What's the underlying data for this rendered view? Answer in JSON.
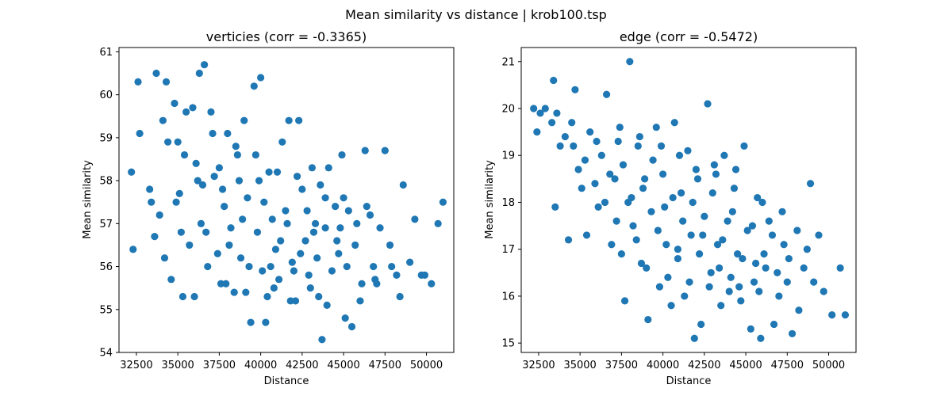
{
  "suptitle": "Mean similarity vs distance | krob100.tsp",
  "colors": {
    "marker": "#1f77b4",
    "axes": "#000000",
    "background": "#ffffff"
  },
  "chart_data": [
    {
      "type": "scatter",
      "title": "verticies (corr = -0.3365)",
      "xlabel": "Distance",
      "ylabel": "Mean similarity",
      "xlim": [
        31450,
        51650
      ],
      "ylim": [
        54,
        61.1
      ],
      "grid": false,
      "xticks": [
        32500,
        35000,
        37500,
        40000,
        42500,
        45000,
        47500,
        50000
      ],
      "xtick_labels": [
        "32500",
        "35000",
        "37500",
        "40000",
        "42500",
        "45000",
        "47500",
        "50000"
      ],
      "yticks": [
        54,
        55,
        56,
        57,
        58,
        59,
        60,
        61
      ],
      "ytick_labels": [
        "54",
        "55",
        "56",
        "57",
        "58",
        "59",
        "60",
        "61"
      ],
      "correlation": -0.3365,
      "points": [
        [
          32200,
          58.2
        ],
        [
          32300,
          56.4
        ],
        [
          32600,
          60.3
        ],
        [
          32700,
          59.1
        ],
        [
          33300,
          57.8
        ],
        [
          33400,
          57.5
        ],
        [
          33600,
          56.7
        ],
        [
          33700,
          60.5
        ],
        [
          33900,
          57.2
        ],
        [
          34100,
          59.4
        ],
        [
          34200,
          56.2
        ],
        [
          34300,
          60.3
        ],
        [
          34400,
          58.9
        ],
        [
          34600,
          55.7
        ],
        [
          34800,
          59.8
        ],
        [
          35000,
          58.9
        ],
        [
          35100,
          57.7
        ],
        [
          35300,
          55.3
        ],
        [
          35500,
          59.6
        ],
        [
          35700,
          56.5
        ],
        [
          35900,
          59.7
        ],
        [
          36100,
          58.4
        ],
        [
          36300,
          60.5
        ],
        [
          36500,
          57.9
        ],
        [
          36600,
          60.7
        ],
        [
          36700,
          56.8
        ],
        [
          37000,
          59.6
        ],
        [
          37200,
          58.1
        ],
        [
          37400,
          56.3
        ],
        [
          37600,
          55.6
        ],
        [
          37800,
          57.4
        ],
        [
          38000,
          59.1
        ],
        [
          38200,
          56.9
        ],
        [
          38400,
          55.4
        ],
        [
          38600,
          58.6
        ],
        [
          38800,
          56.2
        ],
        [
          39000,
          59.4
        ],
        [
          39200,
          57.6
        ],
        [
          39400,
          54.7
        ],
        [
          39600,
          60.2
        ],
        [
          39800,
          56.8
        ],
        [
          40000,
          60.4
        ],
        [
          40100,
          55.9
        ],
        [
          40300,
          54.7
        ],
        [
          40500,
          58.2
        ],
        [
          40700,
          57.1
        ],
        [
          40900,
          56.4
        ],
        [
          41100,
          55.7
        ],
        [
          41300,
          58.9
        ],
        [
          41500,
          57.3
        ],
        [
          41700,
          59.4
        ],
        [
          41900,
          56.1
        ],
        [
          42100,
          55.2
        ],
        [
          42300,
          59.4
        ],
        [
          42500,
          57.8
        ],
        [
          42700,
          56.6
        ],
        [
          42900,
          55.8
        ],
        [
          43100,
          58.3
        ],
        [
          43300,
          57.0
        ],
        [
          43500,
          55.3
        ],
        [
          43700,
          54.3
        ],
        [
          43900,
          56.9
        ],
        [
          44100,
          58.3
        ],
        [
          44300,
          55.9
        ],
        [
          44500,
          57.4
        ],
        [
          44700,
          56.3
        ],
        [
          44900,
          58.6
        ],
        [
          45100,
          54.8
        ],
        [
          45300,
          57.3
        ],
        [
          45500,
          54.6
        ],
        [
          45700,
          56.5
        ],
        [
          46000,
          55.2
        ],
        [
          46300,
          58.7
        ],
        [
          46600,
          57.2
        ],
        [
          46900,
          55.7
        ],
        [
          47200,
          56.9
        ],
        [
          47500,
          58.7
        ],
        [
          47800,
          56.5
        ],
        [
          48200,
          55.8
        ],
        [
          48600,
          57.9
        ],
        [
          49000,
          56.1
        ],
        [
          49300,
          57.1
        ],
        [
          49700,
          55.8
        ],
        [
          50300,
          55.6
        ],
        [
          50700,
          57.0
        ],
        [
          51000,
          57.5
        ],
        [
          49900,
          55.8
        ],
        [
          48400,
          55.3
        ],
        [
          46100,
          55.6
        ],
        [
          44000,
          55.1
        ],
        [
          36000,
          55.3
        ],
        [
          35400,
          58.6
        ],
        [
          37100,
          59.1
        ],
        [
          38500,
          58.8
        ],
        [
          39700,
          58.6
        ],
        [
          40600,
          56.0
        ],
        [
          41200,
          56.6
        ],
        [
          42400,
          56.3
        ],
        [
          43200,
          56.8
        ],
        [
          44800,
          56.9
        ],
        [
          36400,
          57.0
        ],
        [
          37700,
          57.8
        ],
        [
          38900,
          57.1
        ],
        [
          40200,
          57.5
        ],
        [
          41600,
          57.0
        ],
        [
          42800,
          57.3
        ],
        [
          43900,
          57.6
        ],
        [
          45200,
          56.0
        ],
        [
          46800,
          56.0
        ],
        [
          47900,
          56.0
        ],
        [
          35200,
          56.8
        ],
        [
          36800,
          56.0
        ],
        [
          38100,
          56.5
        ],
        [
          39300,
          56.0
        ],
        [
          40800,
          55.5
        ],
        [
          42000,
          55.9
        ],
        [
          43400,
          56.2
        ],
        [
          44600,
          56.6
        ],
        [
          45800,
          57.0
        ],
        [
          47000,
          55.6
        ],
        [
          34900,
          57.5
        ],
        [
          36200,
          58.0
        ],
        [
          37500,
          58.3
        ],
        [
          38700,
          58.0
        ],
        [
          39900,
          58.0
        ],
        [
          41000,
          58.2
        ],
        [
          42200,
          58.1
        ],
        [
          43600,
          57.9
        ],
        [
          45000,
          57.6
        ],
        [
          46400,
          57.4
        ],
        [
          37900,
          55.6
        ],
        [
          39100,
          55.4
        ],
        [
          40400,
          55.3
        ],
        [
          41800,
          55.2
        ],
        [
          43000,
          55.5
        ]
      ]
    },
    {
      "type": "scatter",
      "title": "edge (corr = -0.5472)",
      "xlabel": "Distance",
      "ylabel": "Mean similarity",
      "xlim": [
        31450,
        51650
      ],
      "ylim": [
        14.8,
        21.3
      ],
      "grid": false,
      "xticks": [
        32500,
        35000,
        37500,
        40000,
        42500,
        45000,
        47500,
        50000
      ],
      "xtick_labels": [
        "32500",
        "35000",
        "37500",
        "40000",
        "42500",
        "45000",
        "47500",
        "50000"
      ],
      "yticks": [
        15,
        16,
        17,
        18,
        19,
        20,
        21
      ],
      "ytick_labels": [
        "15",
        "16",
        "17",
        "18",
        "19",
        "20",
        "21"
      ],
      "correlation": -0.5472,
      "points": [
        [
          32200,
          20.0
        ],
        [
          32400,
          19.5
        ],
        [
          32600,
          19.9
        ],
        [
          32900,
          20.0
        ],
        [
          33300,
          19.7
        ],
        [
          33400,
          20.6
        ],
        [
          33500,
          17.9
        ],
        [
          33600,
          19.9
        ],
        [
          33800,
          19.2
        ],
        [
          34100,
          19.4
        ],
        [
          34300,
          17.2
        ],
        [
          34500,
          19.7
        ],
        [
          34700,
          20.4
        ],
        [
          34900,
          18.7
        ],
        [
          35100,
          18.3
        ],
        [
          35400,
          17.3
        ],
        [
          35600,
          19.5
        ],
        [
          35900,
          18.4
        ],
        [
          36100,
          17.9
        ],
        [
          36300,
          19.0
        ],
        [
          36600,
          20.3
        ],
        [
          36900,
          17.1
        ],
        [
          37100,
          18.5
        ],
        [
          37300,
          19.3
        ],
        [
          37500,
          16.9
        ],
        [
          37700,
          15.9
        ],
        [
          37900,
          18.0
        ],
        [
          38000,
          21.0
        ],
        [
          38200,
          17.5
        ],
        [
          38500,
          19.2
        ],
        [
          38700,
          16.7
        ],
        [
          38900,
          18.5
        ],
        [
          39100,
          15.5
        ],
        [
          39300,
          17.8
        ],
        [
          39600,
          19.6
        ],
        [
          39800,
          16.2
        ],
        [
          40000,
          18.6
        ],
        [
          40200,
          17.1
        ],
        [
          40500,
          15.8
        ],
        [
          40700,
          19.7
        ],
        [
          40900,
          16.8
        ],
        [
          41100,
          18.2
        ],
        [
          41300,
          16.0
        ],
        [
          41500,
          19.1
        ],
        [
          41700,
          17.3
        ],
        [
          41900,
          15.1
        ],
        [
          42100,
          18.5
        ],
        [
          42300,
          15.4
        ],
        [
          42500,
          17.7
        ],
        [
          42700,
          20.1
        ],
        [
          42900,
          16.5
        ],
        [
          43100,
          18.8
        ],
        [
          43300,
          17.1
        ],
        [
          43500,
          15.8
        ],
        [
          43700,
          19.0
        ],
        [
          43900,
          17.6
        ],
        [
          44100,
          16.4
        ],
        [
          44300,
          18.3
        ],
        [
          44500,
          16.9
        ],
        [
          44700,
          15.9
        ],
        [
          44900,
          19.2
        ],
        [
          45100,
          17.4
        ],
        [
          45300,
          15.3
        ],
        [
          45500,
          16.3
        ],
        [
          45700,
          18.1
        ],
        [
          45900,
          15.1
        ],
        [
          46100,
          16.9
        ],
        [
          46400,
          17.6
        ],
        [
          46700,
          15.4
        ],
        [
          46900,
          16.5
        ],
        [
          47200,
          17.8
        ],
        [
          47500,
          16.3
        ],
        [
          47800,
          15.2
        ],
        [
          48100,
          17.4
        ],
        [
          48500,
          16.6
        ],
        [
          48900,
          18.4
        ],
        [
          49100,
          16.3
        ],
        [
          49400,
          17.3
        ],
        [
          49700,
          16.1
        ],
        [
          50200,
          15.6
        ],
        [
          50700,
          16.6
        ],
        [
          51000,
          15.6
        ],
        [
          48200,
          15.7
        ],
        [
          47000,
          16.0
        ],
        [
          45600,
          16.7
        ],
        [
          36500,
          18.0
        ],
        [
          37600,
          18.8
        ],
        [
          38800,
          18.3
        ],
        [
          40100,
          17.9
        ],
        [
          41200,
          17.6
        ],
        [
          42400,
          17.3
        ],
        [
          43600,
          17.2
        ],
        [
          44800,
          16.8
        ],
        [
          46200,
          16.6
        ],
        [
          47600,
          16.8
        ],
        [
          35300,
          18.9
        ],
        [
          36800,
          18.6
        ],
        [
          38100,
          18.1
        ],
        [
          39400,
          18.9
        ],
        [
          40600,
          18.1
        ],
        [
          41800,
          18.0
        ],
        [
          43000,
          18.2
        ],
        [
          44200,
          17.8
        ],
        [
          45400,
          17.5
        ],
        [
          46600,
          17.3
        ],
        [
          37200,
          17.6
        ],
        [
          38400,
          17.2
        ],
        [
          39700,
          17.4
        ],
        [
          40900,
          17.0
        ],
        [
          42200,
          16.9
        ],
        [
          43400,
          16.6
        ],
        [
          44600,
          16.2
        ],
        [
          45800,
          16.1
        ],
        [
          47300,
          17.1
        ],
        [
          48700,
          17.0
        ],
        [
          34600,
          19.2
        ],
        [
          36000,
          19.3
        ],
        [
          37400,
          19.6
        ],
        [
          38600,
          19.4
        ],
        [
          39900,
          19.2
        ],
        [
          41000,
          19.0
        ],
        [
          42000,
          18.7
        ],
        [
          43200,
          18.6
        ],
        [
          44400,
          18.7
        ],
        [
          46000,
          18.0
        ],
        [
          39000,
          16.6
        ],
        [
          40300,
          16.4
        ],
        [
          41600,
          16.3
        ],
        [
          42800,
          16.2
        ],
        [
          44000,
          16.1
        ]
      ]
    }
  ]
}
